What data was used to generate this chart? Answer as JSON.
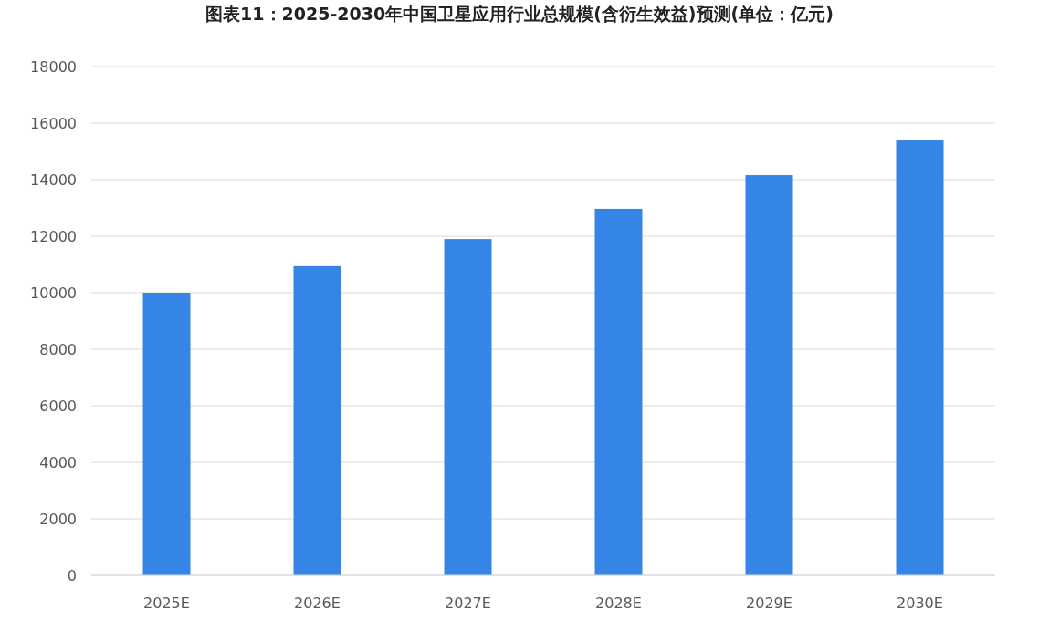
{
  "chart_data": {
    "type": "bar",
    "title": "图表11：2025-2030年中国卫星应用行业总规模(含衍生效益)预测(单位：亿元)",
    "categories": [
      "2025E",
      "2026E",
      "2027E",
      "2028E",
      "2029E",
      "2030E"
    ],
    "values": [
      10000,
      10940,
      11900,
      12970,
      14160,
      15420
    ],
    "color": "#3585e6",
    "ylim": [
      0,
      18000
    ],
    "yticks": [
      0,
      2000,
      4000,
      6000,
      8000,
      10000,
      12000,
      14000,
      16000,
      18000
    ],
    "grid": "y"
  }
}
